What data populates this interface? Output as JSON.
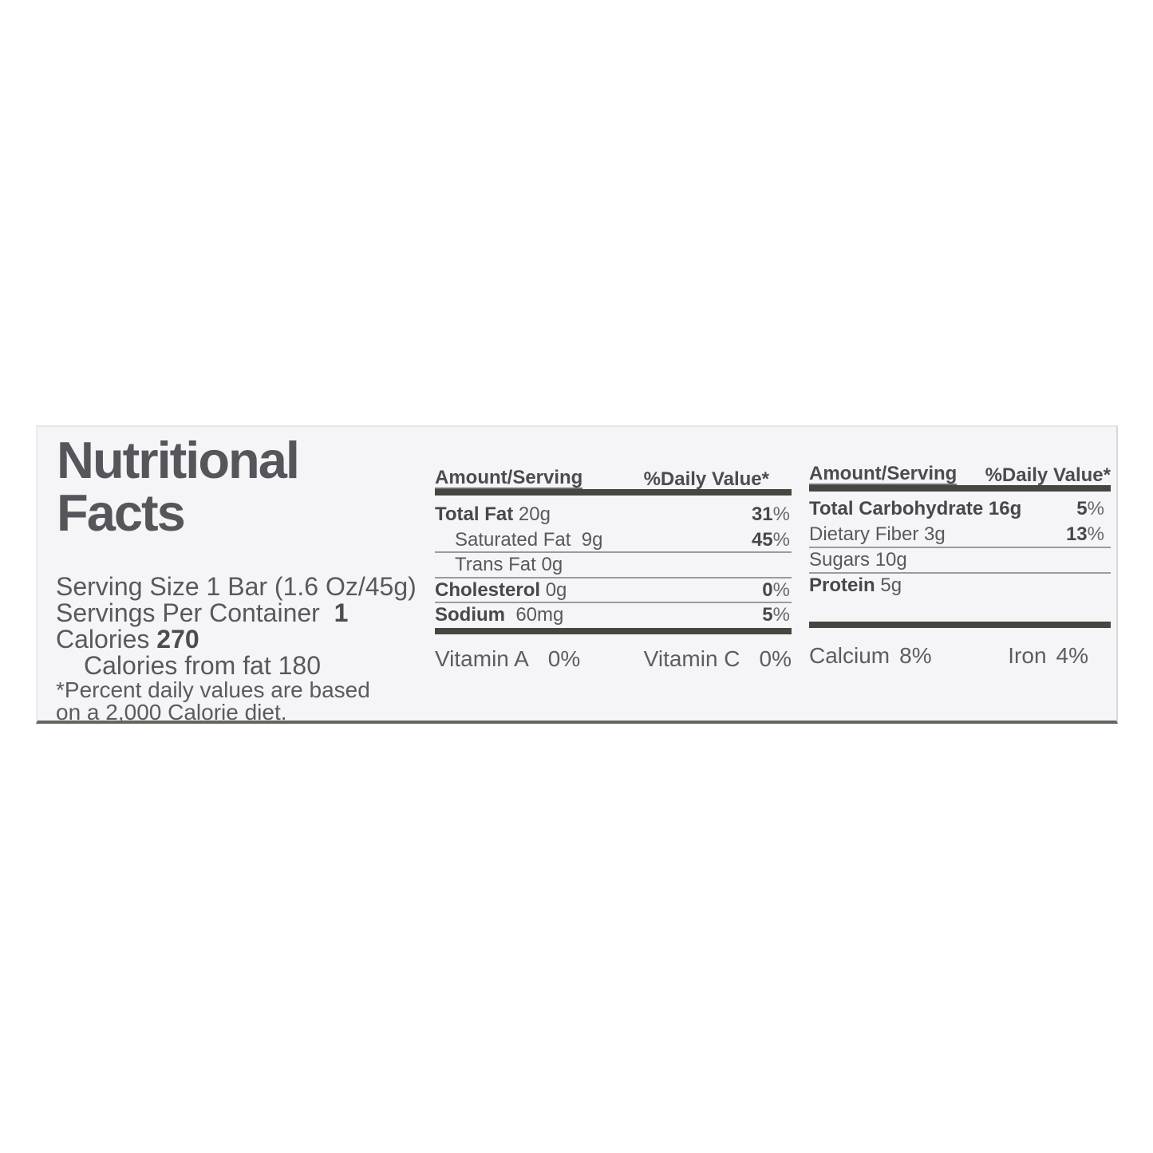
{
  "label": {
    "title_line1": "Nutritional",
    "title_line2": "Facts",
    "serving_size_line": "Serving Size 1 Bar (1.6 Oz/45g)",
    "servings_label": "Servings Per Container  ",
    "servings_value": "1",
    "calories_label": "Calories ",
    "calories_value": "270",
    "calories_from_fat_line": "Calories from fat 180",
    "footnote_line1": "*Percent daily values are based",
    "footnote_line2": "on a 2,000 Calorie diet."
  },
  "mid_panel": {
    "header": {
      "amount": "Amount/Serving",
      "daily_value": "%Daily Value*"
    },
    "rows": [
      {
        "name_bold": "Total Fat",
        "name_rest": " 20g",
        "value_bold": "31",
        "value_unit": "%"
      },
      {
        "name_bold": "",
        "name_rest": "Saturated Fat  9g",
        "value_bold": "45",
        "value_unit": "%"
      },
      {
        "name_bold": "",
        "name_rest": "Trans Fat 0g",
        "value_bold": "",
        "value_unit": ""
      },
      {
        "name_bold": "Cholesterol",
        "name_rest": " 0g",
        "value_bold": "0",
        "value_unit": "%"
      },
      {
        "name_bold": "Sodium",
        "name_rest": "  60mg",
        "value_bold": "5",
        "value_unit": "%"
      }
    ],
    "micros": [
      {
        "name": "Vitamin A",
        "value": "0%"
      },
      {
        "name": "Vitamin C",
        "value": "0%"
      }
    ]
  },
  "right_panel": {
    "header": {
      "amount": "Amount/Serving",
      "daily_value": "%Daily Value*"
    },
    "rows": [
      {
        "name_bold": "Total Carbohydrate 16g",
        "name_rest": "",
        "value_bold": "5",
        "value_unit": "%"
      },
      {
        "name_bold": "",
        "name_rest": "Dietary Fiber 3g",
        "value_bold": "13",
        "value_unit": "%"
      },
      {
        "name_bold": "",
        "name_rest": "Sugars 10g",
        "value_bold": "",
        "value_unit": ""
      },
      {
        "name_bold": "Protein",
        "name_rest": " 5g",
        "value_bold": "",
        "value_unit": ""
      }
    ],
    "micros": [
      {
        "name": "Calcium",
        "value": "8%"
      },
      {
        "name": "Iron",
        "value": "4%"
      }
    ]
  },
  "colors": {
    "card_background": "#f5f5f7",
    "text": "#59595d",
    "bold_text": "#48474b",
    "rule_bar": "#46453f",
    "thin_rule": "#9b9b9e",
    "card_bottom_edge": "#66645c"
  }
}
